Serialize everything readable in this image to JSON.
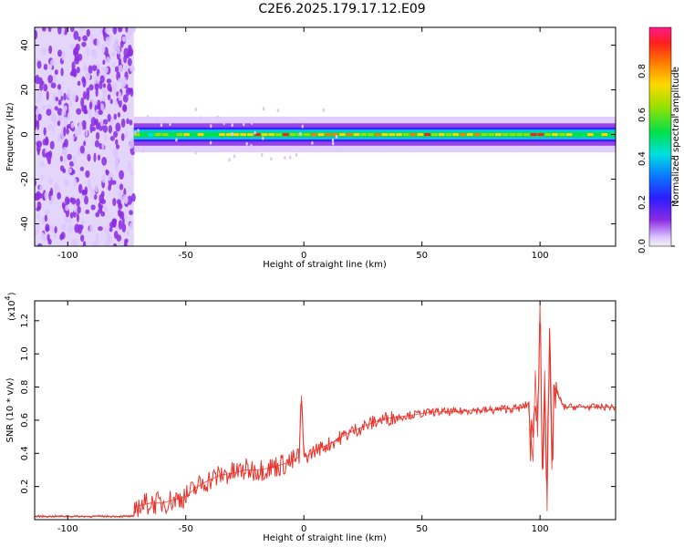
{
  "title": "C2E6.2025.179.17.12.E09",
  "chart_data": [
    {
      "type": "heatmap",
      "xlabel": "Height of straight line (km)",
      "ylabel": "Frequency (Hz)",
      "xlim": [
        -114,
        132
      ],
      "ylim": [
        -50,
        48
      ],
      "xticks": [
        "-100",
        "-50",
        "0",
        "50",
        "100"
      ],
      "yticks": [
        "-40",
        "-20",
        "0",
        "20",
        "40"
      ],
      "colorbar": {
        "label": "Normalized spectral amplitude",
        "range": [
          0.0,
          1.0
        ],
        "ticks": [
          "0.0",
          "0.2",
          "0.4",
          "0.6",
          "0.8"
        ]
      },
      "noise_region_x": [
        -114,
        -72
      ],
      "signal_line": {
        "x_start": -72,
        "x_end": 132,
        "frequency_hz": 0,
        "core_amplitude": 0.95,
        "edge_amplitude": 0.5
      }
    },
    {
      "type": "line",
      "xlabel": "Height of straight line (km)",
      "ylabel": "SNR (10 * v/v)",
      "multiplier": "(x10",
      "multiplier_exp": "4",
      "xlim": [
        -114,
        132
      ],
      "ylim": [
        0.0,
        1.32
      ],
      "xticks": [
        "-100",
        "-50",
        "0",
        "50",
        "100"
      ],
      "yticks": [
        "0.2",
        "0.4",
        "0.6",
        "0.8",
        "1.0",
        "1.2"
      ],
      "series": [
        {
          "color": "#e8322a",
          "x": [
            -114,
            -90,
            -72,
            -71,
            -65,
            -60,
            -55,
            -50,
            -45,
            -40,
            -35,
            -30,
            -25,
            -20,
            -15,
            -10,
            -5,
            -2,
            -1,
            0,
            1,
            5,
            10,
            15,
            20,
            25,
            30,
            35,
            40,
            45,
            50,
            55,
            60,
            65,
            70,
            75,
            80,
            85,
            90,
            93,
            95,
            97,
            98,
            99,
            100,
            101,
            102,
            103,
            104,
            105,
            106,
            110,
            115,
            120,
            125,
            132
          ],
          "y": [
            0.02,
            0.02,
            0.02,
            0.08,
            0.1,
            0.1,
            0.12,
            0.14,
            0.2,
            0.24,
            0.27,
            0.28,
            0.3,
            0.3,
            0.31,
            0.33,
            0.35,
            0.38,
            0.75,
            0.38,
            0.38,
            0.42,
            0.45,
            0.49,
            0.53,
            0.56,
            0.59,
            0.61,
            0.62,
            0.63,
            0.64,
            0.65,
            0.65,
            0.65,
            0.66,
            0.66,
            0.66,
            0.67,
            0.67,
            0.68,
            0.7,
            0.35,
            0.9,
            0.5,
            1.32,
            0.3,
            0.9,
            0.05,
            1.1,
            0.3,
            0.8,
            0.68,
            0.68,
            0.68,
            0.68,
            0.68
          ]
        }
      ]
    }
  ]
}
